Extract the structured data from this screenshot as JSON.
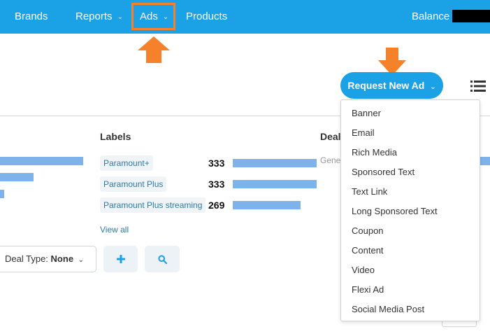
{
  "nav": {
    "brands": "Brands",
    "reports": "Reports",
    "ads": "Ads",
    "products": "Products",
    "balance_label": "Balance"
  },
  "request_button": "Request New Ad",
  "labels_section": {
    "title": "Labels",
    "items": [
      {
        "label": "Paramount+",
        "count": "333",
        "fill": 1.0
      },
      {
        "label": "Paramount Plus",
        "count": "333",
        "fill": 1.0
      },
      {
        "label": "Paramount Plus streaming",
        "count": "269",
        "fill": 0.81
      }
    ],
    "view_all": "View all"
  },
  "deals_section": {
    "title": "Deals",
    "subtitle": "Gene"
  },
  "filter": {
    "deal_type_label": "Deal Type:",
    "deal_type_value": "None",
    "add_icon": "plus-icon",
    "search_icon": "search-icon"
  },
  "dropdown": {
    "items": [
      "Banner",
      "Email",
      "Rich Media",
      "Sponsored Text",
      "Text Link",
      "Long Sponsored Text",
      "Coupon",
      "Content",
      "Video",
      "Flexi Ad",
      "Social Media Post"
    ]
  },
  "colors": {
    "nav_bg": "#1aa1e6",
    "highlight": "#f5822a",
    "bar": "#7db3ea",
    "link": "#2b7aa8"
  }
}
